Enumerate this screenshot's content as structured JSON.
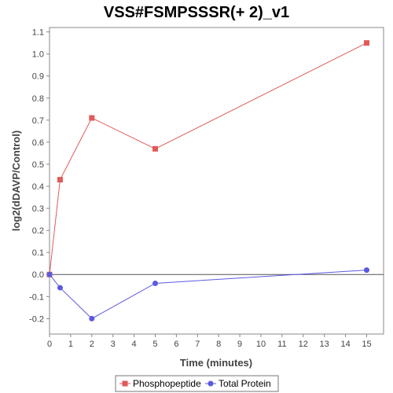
{
  "chart_data": {
    "type": "line",
    "title": "VSS#FSMPSSSR(+ 2)_v1",
    "xlabel": "Time (minutes)",
    "ylabel": "log2(dDAVP/Control)",
    "xlim": [
      0,
      15.8
    ],
    "ylim": [
      -0.27,
      1.12
    ],
    "xticks": [
      0,
      1,
      2,
      3,
      4,
      5,
      6,
      7,
      8,
      9,
      10,
      11,
      12,
      13,
      14,
      15
    ],
    "yticks": [
      -0.2,
      -0.1,
      0.0,
      0.1,
      0.2,
      0.3,
      0.4,
      0.5,
      0.6,
      0.7,
      0.8,
      0.9,
      1.0,
      1.1
    ],
    "ytick_labels": [
      "-0.2",
      "-0.1",
      "0.0",
      "0.1",
      "0.2",
      "0.3",
      "0.4",
      "0.5",
      "0.6",
      "0.7",
      "0.8",
      "0.9",
      "1.0",
      "1.1"
    ],
    "zero_line": true,
    "grid": false,
    "legend_position": "bottom-center",
    "series": [
      {
        "name": "Phosphopeptide",
        "color": "#e05a5a",
        "marker": "square",
        "x": [
          0,
          0.5,
          2,
          5,
          15
        ],
        "y": [
          0.0,
          0.43,
          0.71,
          0.57,
          1.05
        ]
      },
      {
        "name": "Total Protein",
        "color": "#5a5ae0",
        "marker": "circle",
        "x": [
          0,
          0.5,
          2,
          5,
          15
        ],
        "y": [
          0.0,
          -0.06,
          -0.2,
          -0.04,
          0.02
        ]
      }
    ]
  }
}
